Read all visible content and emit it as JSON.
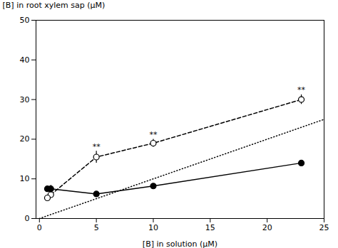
{
  "chart_data": {
    "type": "line",
    "xlabel": "[B] in solution (μM)",
    "ylabel": "[B] in root xylem sap (μM)",
    "xlim": [
      -0.3,
      25
    ],
    "ylim": [
      0,
      50
    ],
    "xticks": [
      0,
      5,
      10,
      15,
      20,
      25
    ],
    "yticks": [
      0,
      10,
      20,
      30,
      40,
      50
    ],
    "series": [
      {
        "type": "line",
        "x": [
          0,
          25
        ],
        "values": [
          0,
          25
        ],
        "color": "#000000",
        "line_style": "dotted"
      },
      {
        "type": "line",
        "x": [
          1.0,
          5.0,
          10.0,
          23.0
        ],
        "values": [
          6.0,
          15.5,
          19.0,
          30.0
        ],
        "errors": [
          0.7,
          1.5,
          1.0,
          1.2
        ],
        "color": "#000000",
        "line_style": "dashed",
        "marker": "open_circle"
      },
      {
        "type": "scatter",
        "x": [
          0.7
        ],
        "values": [
          5.2
        ],
        "color": "#000000",
        "marker": "open_circle"
      },
      {
        "type": "line",
        "x": [
          1.0,
          5.0,
          10.0,
          23.0
        ],
        "values": [
          7.5,
          6.2,
          8.2,
          14.0
        ],
        "errors": [
          0.9,
          0.4,
          0.4,
          0.5
        ],
        "color": "#000000",
        "line_style": "solid",
        "marker": "filled_circle"
      },
      {
        "type": "scatter",
        "x": [
          0.7
        ],
        "values": [
          7.5
        ],
        "color": "#000000",
        "marker": "filled_circle"
      }
    ],
    "annotations": [
      {
        "x": 5.0,
        "y": 17.5,
        "text": "**"
      },
      {
        "x": 10.0,
        "y": 20.5,
        "text": "**"
      },
      {
        "x": 23.0,
        "y": 31.8,
        "text": "**"
      }
    ]
  }
}
